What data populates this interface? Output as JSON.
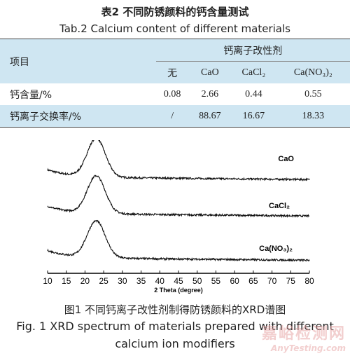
{
  "table": {
    "title_cn": "表2 不同防锈颜料的钙含量测试",
    "title_en": "Tab.2 Calcium content of different materials",
    "header_item": "项目",
    "header_group": "钙离子改性剂",
    "columns": [
      "无",
      "CaO",
      "CaCl₂",
      "Ca(NO₃)₂"
    ],
    "rows": [
      {
        "label": "钙含量/%",
        "values": [
          "0.08",
          "2.66",
          "0.44",
          "0.55"
        ]
      },
      {
        "label": "钙离子交换率/%",
        "values": [
          "/",
          "88.67",
          "16.67",
          "18.33"
        ]
      }
    ]
  },
  "chart_data": {
    "type": "line",
    "xlabel": "2 Theta (degree)",
    "xlim": [
      10,
      80
    ],
    "x_ticks": [
      "10",
      "15",
      "20",
      "25",
      "30",
      "35",
      "40",
      "45",
      "50",
      "55",
      "60",
      "65",
      "70",
      "75",
      "80"
    ],
    "series": [
      {
        "name": "CaO",
        "peak_x": 23,
        "baseline": 0.1,
        "peak_height": 0.95
      },
      {
        "name": "CaCl₂",
        "peak_x": 23,
        "baseline": 0.1,
        "peak_height": 0.92
      },
      {
        "name": "Ca(NO₃)₂",
        "peak_x": 23,
        "baseline": 0.08,
        "peak_height": 0.9
      }
    ]
  },
  "figure": {
    "caption_cn": "图1 不同钙离子改性剂制得防锈颜料的XRD谱图",
    "caption_en_line1": "Fig. 1 XRD spectrum of materials prepared with different",
    "caption_en_line2": "calcium ion modifiers"
  },
  "watermark": {
    "text_cn": "嘉峪检测网",
    "url": "AnyTesting.com"
  }
}
